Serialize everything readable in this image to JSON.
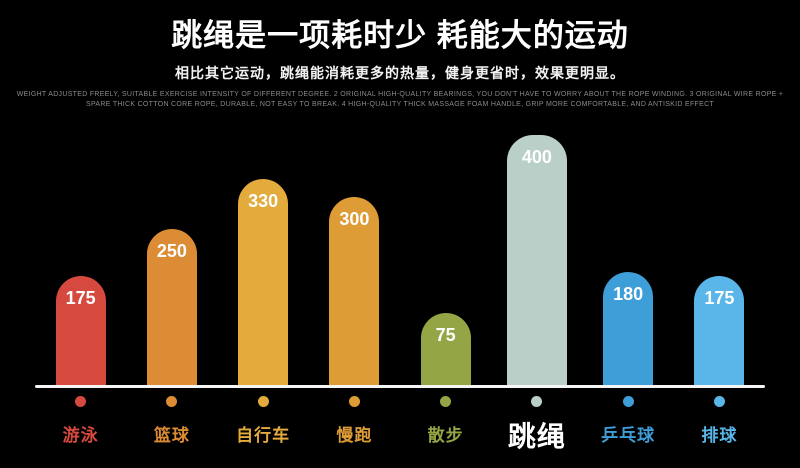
{
  "header": {
    "title_pre": "跳绳是一项",
    "title_bold": "耗时少 耗能大",
    "title_post": "的运动",
    "subtitle": "相比其它运动，跳绳能消耗更多的热量，健身更省时，效果更明显。",
    "fineprint_line1": "WEIGHT ADJUSTED FREELY, SUITABLE EXERCISE INTENSITY OF DIFFERENT DEGREE. 2 ORIGINAL HIGH-QUALITY BEARINGS, YOU DON'T HAVE TO WORRY ABOUT THE ROPE WINDING. 3 ORIGINAL WIRE ROPE +",
    "fineprint_line2": "SPARE THICK COTTON CORE ROPE, DURABLE, NOT EASY TO BREAK. 4 HIGH-QUALITY THICK MASSAGE FOAM HANDLE, GRIP MORE COMFORTABLE, AND ANTISKID EFFECT"
  },
  "chart_data": {
    "type": "bar",
    "title": "跳绳是一项耗时少 耗能大的运动",
    "categories": [
      "游泳",
      "篮球",
      "自行车",
      "慢跑",
      "散步",
      "跳绳",
      "乒乓球",
      "排球"
    ],
    "values": [
      175,
      250,
      330,
      300,
      75,
      400,
      180,
      175
    ],
    "colors": [
      "#d6493e",
      "#db8c34",
      "#e3aa3c",
      "#dd9c36",
      "#93a544",
      "#b9cfc8",
      "#3d9ed8",
      "#5ab5e8"
    ],
    "highlight_index": 5,
    "highlight_label_color": "#ffffff",
    "value_label_color": "#ffffff",
    "axis_color": "#f5f5f5",
    "background_color": "#000000",
    "ylim": [
      0,
      400
    ],
    "legend": "none",
    "grid": false
  }
}
